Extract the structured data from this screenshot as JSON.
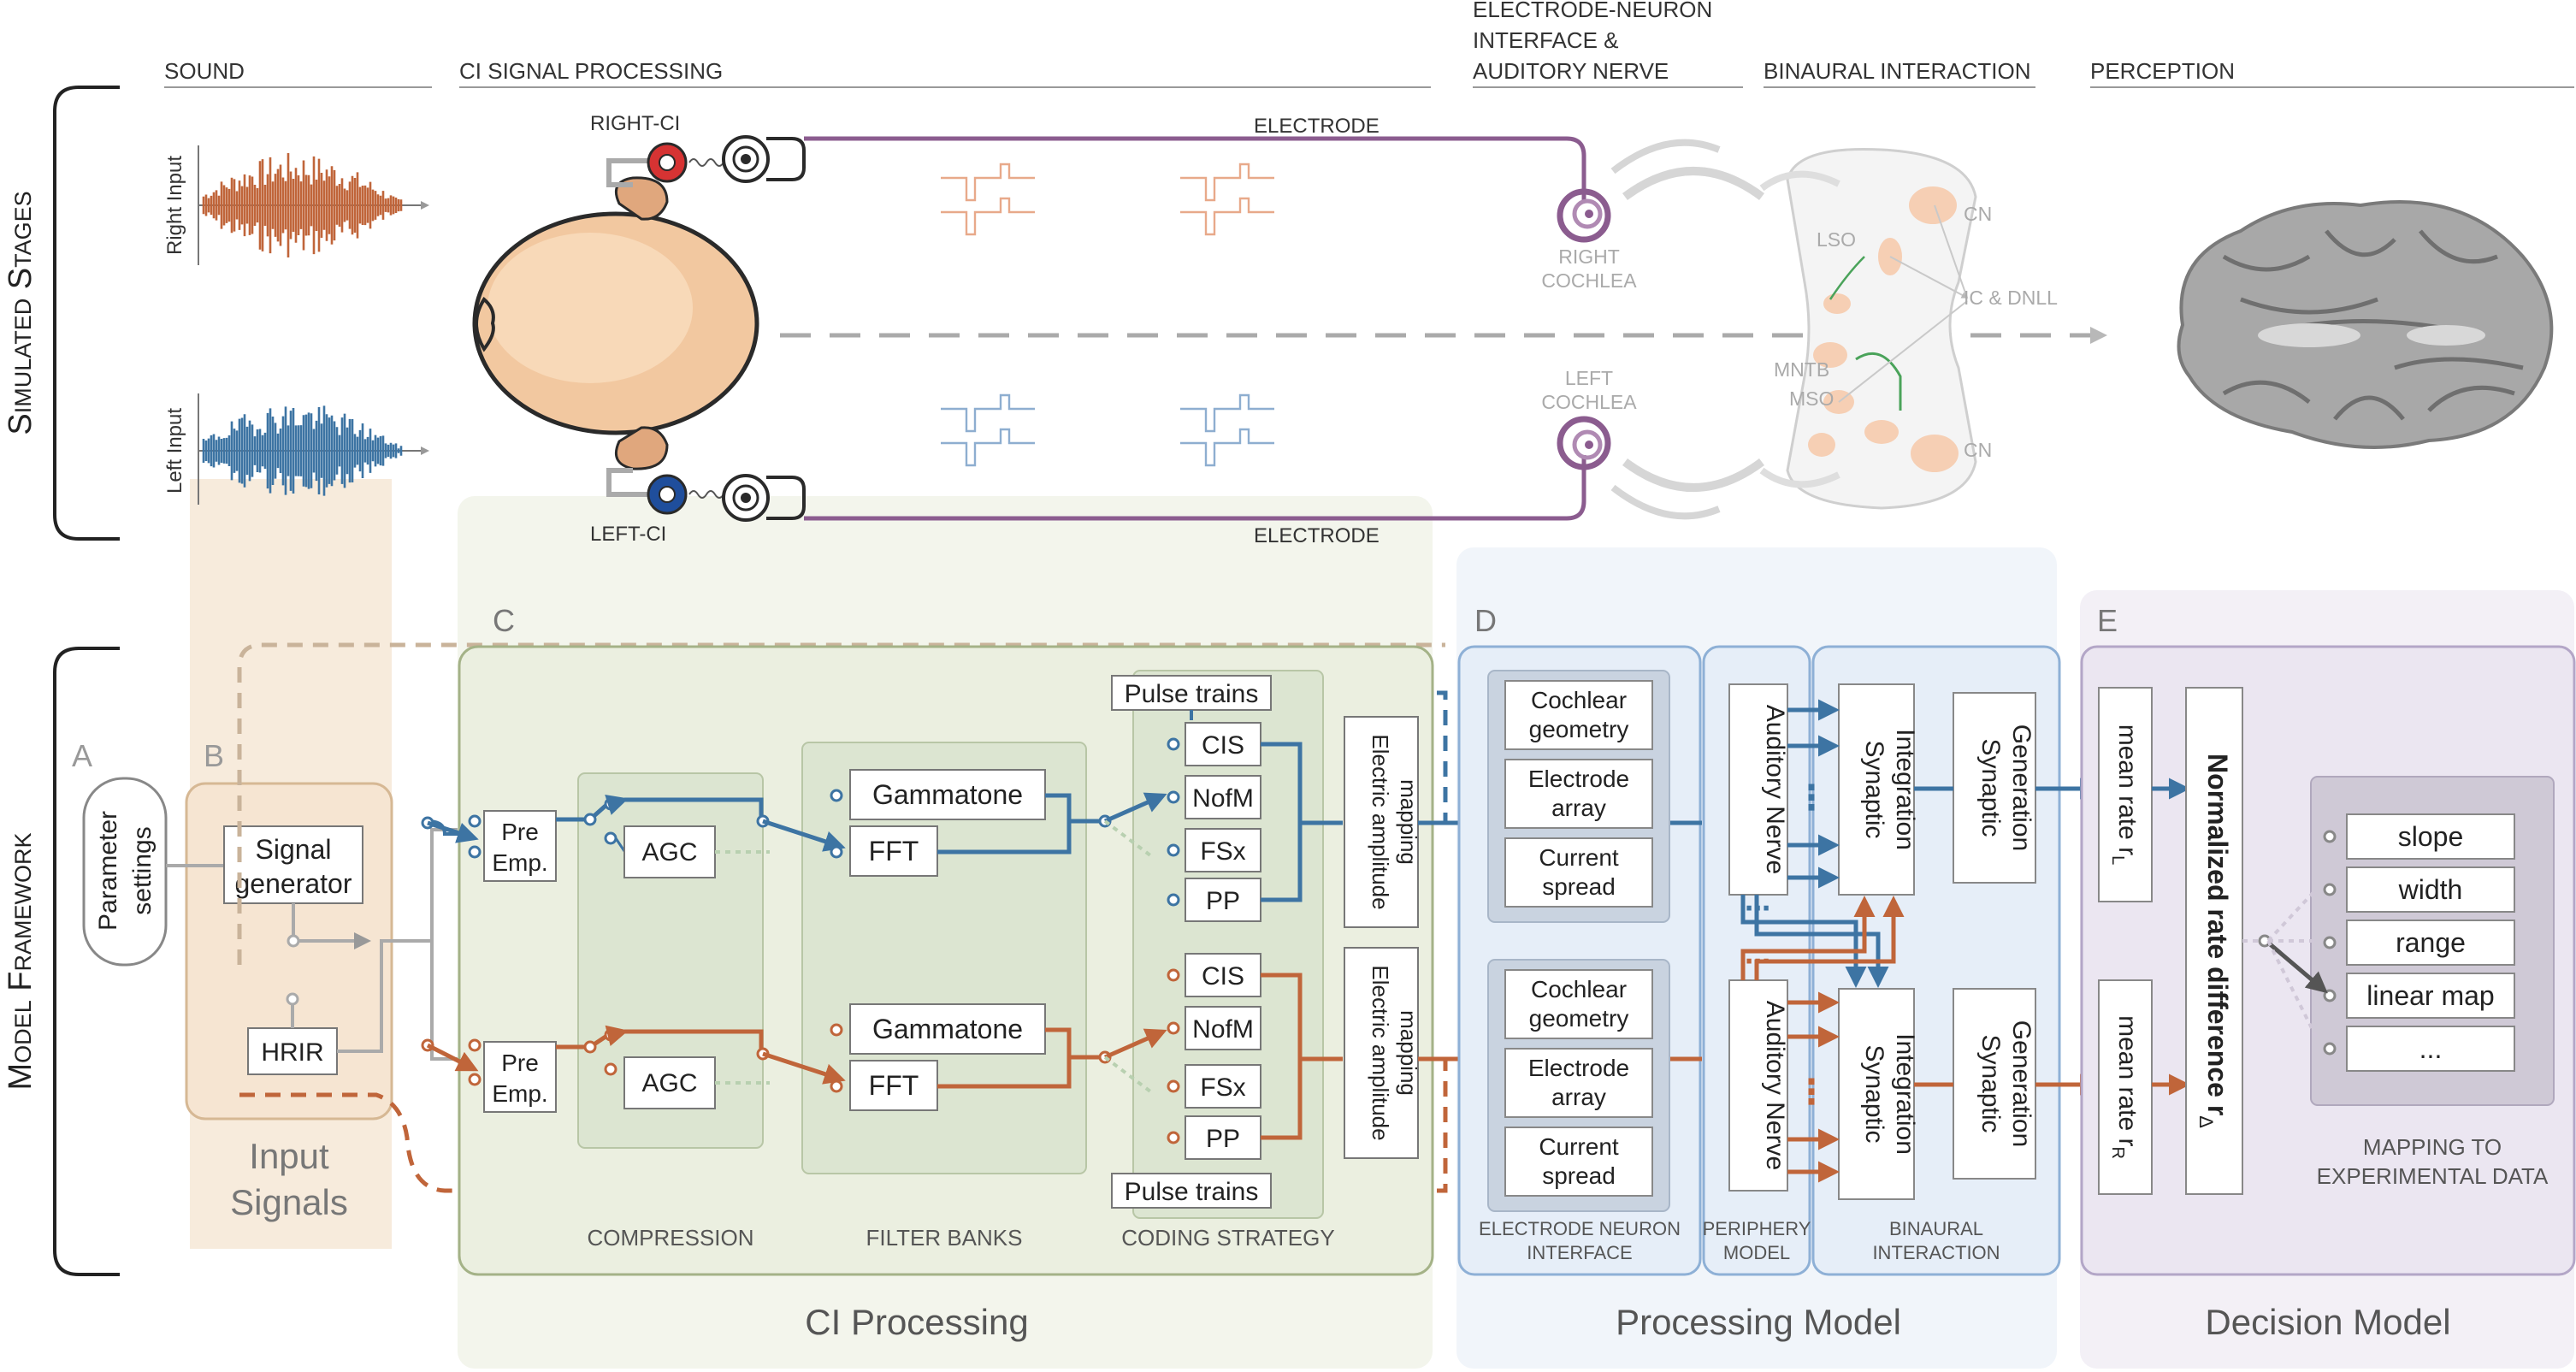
{
  "headers": {
    "sound": "SOUND",
    "ci_signal_processing": "CI SIGNAL PROCESSING",
    "electrode_neuron_1": "ELECTRODE-NEURON",
    "electrode_neuron_2": "INTERFACE &",
    "electrode_neuron_3": "AUDITORY NERVE",
    "binaural_interaction": "BINAURAL INTERACTION",
    "perception": "PERCEPTION"
  },
  "side_labels": {
    "simulated_stages": "Simulated Stages",
    "model_framework": "Model Framework"
  },
  "inputs": {
    "right": "Right Input",
    "left": "Left Input"
  },
  "top": {
    "right_ci": "RIGHT-CI",
    "left_ci": "LEFT-CI",
    "electrode_top": "ELECTRODE",
    "electrode_bottom": "ELECTRODE",
    "right_cochlea_1": "RIGHT",
    "right_cochlea_2": "COCHLEA",
    "left_cochlea_1": "LEFT",
    "left_cochlea_2": "COCHLEA",
    "cn_top": "CN",
    "cn_bottom": "CN",
    "lso": "LSO",
    "mntb": "MNTB",
    "mso": "MSO",
    "ic_dnll": "IC & DNLL"
  },
  "panel_letters": {
    "a": "A",
    "b": "B",
    "c": "C",
    "d": "D",
    "e": "E"
  },
  "input_panel": {
    "parameter_1": "Parameter",
    "parameter_2": "settings",
    "signal_1": "Signal",
    "signal_2": "generator",
    "hrir": "HRIR",
    "title_1": "Input",
    "title_2": "Signals"
  },
  "ci_panel": {
    "pre_1": "Pre",
    "pre_2": "Emp.",
    "agc": "AGC",
    "gammatone": "Gammatone",
    "fft": "FFT",
    "strategies": [
      "CIS",
      "NofM",
      "FSx",
      "PP"
    ],
    "pulse_trains": "Pulse trains",
    "mapping_1": "Electric amplitude",
    "mapping_2": "mapping",
    "compression": "COMPRESSION",
    "filter_banks": "FILTER BANKS",
    "coding_strategy": "CODING STRATEGY",
    "title": "CI Processing"
  },
  "processing_panel": {
    "cochlear_1": "Cochlear",
    "cochlear_2": "geometry",
    "electrode_1": "Electrode",
    "electrode_2": "array",
    "current_1": "Current",
    "current_2": "spread",
    "auditory_nerve": "Auditory Nerve",
    "synaptic_integration_1": "Synaptic",
    "synaptic_integration_2": "Integration",
    "synaptic_generation_1": "Synaptic",
    "synaptic_generation_2": "Generation",
    "eni_1": "ELECTRODE NEURON",
    "eni_2": "INTERFACE",
    "periphery_1": "PERIPHERY",
    "periphery_2": "MODEL",
    "binaural_1": "BINAURAL",
    "binaural_2": "INTERACTION",
    "title": "Processing Model"
  },
  "decision_panel": {
    "mean_rate": "mean rate r",
    "sub_left": "L",
    "sub_right": "R",
    "normalized": "Normalized rate difference r",
    "sub_delta": "Δ",
    "options": [
      "slope",
      "width",
      "range",
      "linear map",
      "..."
    ],
    "mapping_1": "MAPPING TO",
    "mapping_2": "EXPERIMENTAL DATA",
    "title": "Decision Model"
  },
  "colors": {
    "right": "#c0653a",
    "left": "#3d74a3",
    "electrode": "#8b5c8f",
    "input_bg": "#f6e5d2",
    "ci_bg": "#ebefe0",
    "proc_bg": "#e6eef8",
    "dec_bg": "#ebe6f1"
  }
}
